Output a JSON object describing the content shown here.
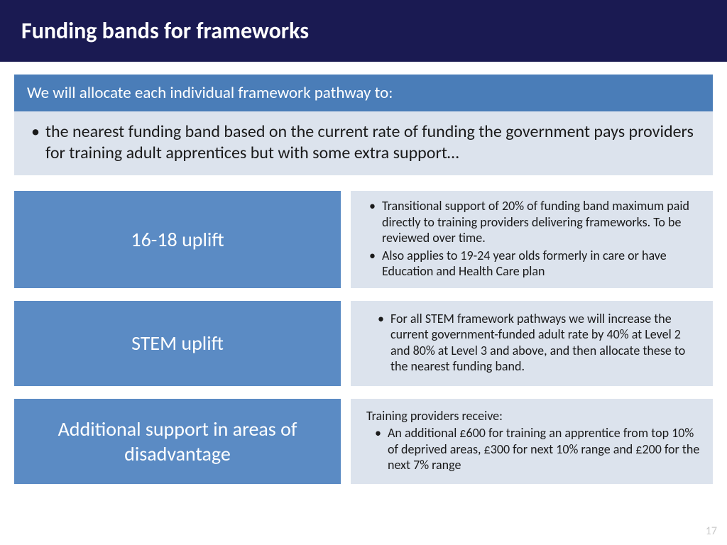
{
  "colors": {
    "header_bg": "#1a1a52",
    "intro_header_bg": "#4a7db8",
    "intro_body_bg": "#dce3ed",
    "row_left_bg": "#5b8bc4",
    "row_right_bg": "#dce3ed",
    "text_dark": "#1a1a1a"
  },
  "header": {
    "title": "Funding bands for frameworks"
  },
  "intro": {
    "heading": "We will allocate each individual framework pathway to:",
    "bullet": "the nearest funding band based on the current rate of funding the government pays providers for training adult apprentices but with some extra support…"
  },
  "rows": [
    {
      "label": "16-18 uplift",
      "bullets": [
        "Transitional support of 20% of funding band maximum paid directly to training providers  delivering frameworks. To be reviewed over time.",
        "Also applies to 19-24 year olds formerly in care or have Education and Health Care plan"
      ]
    },
    {
      "label": "STEM uplift",
      "bullets": [
        "For all STEM framework pathways we will increase the current government-funded adult rate by 40% at Level 2 and 80% at Level 3 and above, and then allocate these to the nearest funding band."
      ]
    },
    {
      "label": "Additional support in areas of disadvantage",
      "lead": "Training providers receive:",
      "bullets": [
        "An additional £600 for training an apprentice from top 10% of deprived areas, £300 for next 10% range and £200 for the next 7% range"
      ]
    }
  ],
  "page_number": "17"
}
